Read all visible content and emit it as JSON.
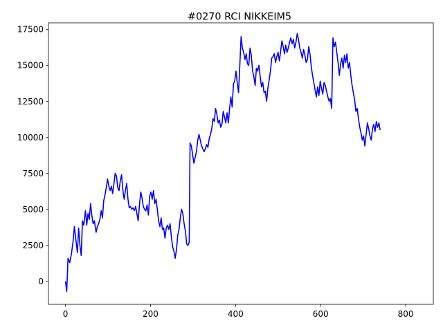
{
  "chart_data": {
    "type": "line",
    "title": "#0270 RCI NIKKEIM5",
    "xlabel": "",
    "ylabel": "",
    "xlim": [
      -40,
      865
    ],
    "ylim": [
      -1600,
      17950
    ],
    "x_ticks": [
      0,
      200,
      400,
      600,
      800
    ],
    "y_ticks": [
      0,
      2500,
      5000,
      7500,
      10000,
      12500,
      15000,
      17500
    ],
    "x_tick_labels": [
      "0",
      "200",
      "400",
      "600",
      "800"
    ],
    "y_tick_labels": [
      "0",
      "2500",
      "5000",
      "7500",
      "10000",
      "12500",
      "15000",
      "17500"
    ],
    "grid": false,
    "legend": "none",
    "series": [
      {
        "color": "#0000ff",
        "points": [
          [
            0,
            0
          ],
          [
            3,
            -700
          ],
          [
            6,
            1600
          ],
          [
            10,
            1300
          ],
          [
            14,
            1900
          ],
          [
            18,
            2800
          ],
          [
            21,
            3800
          ],
          [
            24,
            3000
          ],
          [
            28,
            2000
          ],
          [
            31,
            3700
          ],
          [
            34,
            2500
          ],
          [
            37,
            1800
          ],
          [
            40,
            4200
          ],
          [
            43,
            3900
          ],
          [
            47,
            4900
          ],
          [
            50,
            3900
          ],
          [
            53,
            4700
          ],
          [
            56,
            4300
          ],
          [
            59,
            5400
          ],
          [
            62,
            4600
          ],
          [
            65,
            4000
          ],
          [
            68,
            4200
          ],
          [
            72,
            3400
          ],
          [
            75,
            3800
          ],
          [
            78,
            4000
          ],
          [
            81,
            4300
          ],
          [
            84,
            4900
          ],
          [
            87,
            4400
          ],
          [
            90,
            5600
          ],
          [
            93,
            6000
          ],
          [
            96,
            6500
          ],
          [
            99,
            7100
          ],
          [
            102,
            6600
          ],
          [
            105,
            6300
          ],
          [
            108,
            6600
          ],
          [
            111,
            6100
          ],
          [
            114,
            6800
          ],
          [
            117,
            7500
          ],
          [
            120,
            7300
          ],
          [
            123,
            6500
          ],
          [
            126,
            6300
          ],
          [
            129,
            7000
          ],
          [
            132,
            7400
          ],
          [
            135,
            6300
          ],
          [
            138,
            5700
          ],
          [
            141,
            6300
          ],
          [
            144,
            6800
          ],
          [
            147,
            5700
          ],
          [
            150,
            5100
          ],
          [
            153,
            5200
          ],
          [
            156,
            5000
          ],
          [
            159,
            5100
          ],
          [
            162,
            4900
          ],
          [
            165,
            5200
          ],
          [
            168,
            4700
          ],
          [
            171,
            4200
          ],
          [
            174,
            5300
          ],
          [
            177,
            6200
          ],
          [
            180,
            5800
          ],
          [
            183,
            5200
          ],
          [
            186,
            5000
          ],
          [
            189,
            4900
          ],
          [
            192,
            5300
          ],
          [
            195,
            4600
          ],
          [
            198,
            5900
          ],
          [
            201,
            6200
          ],
          [
            204,
            5700
          ],
          [
            207,
            6300
          ],
          [
            210,
            5400
          ],
          [
            213,
            5700
          ],
          [
            216,
            5000
          ],
          [
            219,
            4200
          ],
          [
            222,
            3800
          ],
          [
            225,
            4400
          ],
          [
            228,
            3600
          ],
          [
            231,
            3700
          ],
          [
            234,
            3000
          ],
          [
            237,
            3700
          ],
          [
            240,
            3900
          ],
          [
            243,
            3600
          ],
          [
            246,
            4000
          ],
          [
            249,
            3100
          ],
          [
            252,
            2400
          ],
          [
            255,
            2100
          ],
          [
            258,
            1600
          ],
          [
            261,
            2200
          ],
          [
            264,
            3200
          ],
          [
            267,
            3600
          ],
          [
            270,
            4400
          ],
          [
            273,
            5000
          ],
          [
            276,
            4700
          ],
          [
            279,
            4000
          ],
          [
            282,
            3500
          ],
          [
            285,
            2600
          ],
          [
            288,
            2500
          ],
          [
            291,
            2700
          ],
          [
            293,
            9600
          ],
          [
            296,
            9400
          ],
          [
            299,
            8800
          ],
          [
            302,
            8200
          ],
          [
            305,
            8600
          ],
          [
            308,
            9000
          ],
          [
            311,
            9800
          ],
          [
            314,
            10200
          ],
          [
            317,
            9800
          ],
          [
            320,
            9400
          ],
          [
            323,
            9200
          ],
          [
            326,
            9000
          ],
          [
            329,
            9200
          ],
          [
            332,
            9500
          ],
          [
            335,
            9300
          ],
          [
            338,
            9900
          ],
          [
            341,
            10200
          ],
          [
            344,
            10600
          ],
          [
            347,
            11300
          ],
          [
            350,
            11100
          ],
          [
            353,
            12000
          ],
          [
            356,
            11600
          ],
          [
            359,
            11000
          ],
          [
            362,
            11200
          ],
          [
            365,
            10700
          ],
          [
            368,
            10900
          ],
          [
            371,
            11800
          ],
          [
            374,
            11400
          ],
          [
            377,
            11000
          ],
          [
            380,
            11700
          ],
          [
            383,
            11000
          ],
          [
            386,
            12000
          ],
          [
            389,
            12800
          ],
          [
            392,
            12100
          ],
          [
            395,
            13700
          ],
          [
            398,
            13900
          ],
          [
            401,
            14600
          ],
          [
            404,
            13800
          ],
          [
            407,
            13100
          ],
          [
            410,
            15000
          ],
          [
            413,
            17000
          ],
          [
            416,
            16200
          ],
          [
            419,
            15900
          ],
          [
            422,
            15400
          ],
          [
            425,
            15800
          ],
          [
            428,
            15100
          ],
          [
            431,
            15000
          ],
          [
            434,
            16200
          ],
          [
            437,
            15700
          ],
          [
            440,
            14600
          ],
          [
            443,
            14200
          ],
          [
            446,
            13600
          ],
          [
            449,
            14800
          ],
          [
            452,
            14600
          ],
          [
            455,
            15000
          ],
          [
            458,
            14200
          ],
          [
            461,
            13500
          ],
          [
            464,
            13800
          ],
          [
            467,
            13100
          ],
          [
            470,
            13200
          ],
          [
            473,
            12500
          ],
          [
            476,
            13400
          ],
          [
            479,
            14000
          ],
          [
            482,
            14600
          ],
          [
            485,
            15500
          ],
          [
            488,
            15600
          ],
          [
            491,
            15800
          ],
          [
            494,
            15200
          ],
          [
            497,
            15600
          ],
          [
            500,
            15900
          ],
          [
            503,
            15300
          ],
          [
            506,
            16000
          ],
          [
            509,
            16700
          ],
          [
            512,
            16300
          ],
          [
            515,
            15800
          ],
          [
            518,
            16400
          ],
          [
            521,
            15900
          ],
          [
            524,
            16200
          ],
          [
            527,
            16600
          ],
          [
            530,
            16900
          ],
          [
            533,
            16500
          ],
          [
            536,
            16800
          ],
          [
            539,
            16200
          ],
          [
            542,
            16600
          ],
          [
            545,
            17200
          ],
          [
            548,
            16800
          ],
          [
            551,
            16200
          ],
          [
            554,
            15900
          ],
          [
            557,
            15500
          ],
          [
            560,
            16100
          ],
          [
            563,
            15700
          ],
          [
            566,
            15200
          ],
          [
            569,
            15400
          ],
          [
            572,
            16300
          ],
          [
            575,
            15800
          ],
          [
            578,
            14900
          ],
          [
            581,
            14300
          ],
          [
            584,
            13800
          ],
          [
            587,
            13300
          ],
          [
            590,
            12800
          ],
          [
            593,
            13500
          ],
          [
            596,
            12900
          ],
          [
            599,
            13900
          ],
          [
            602,
            13400
          ],
          [
            605,
            13000
          ],
          [
            608,
            13800
          ],
          [
            611,
            13600
          ],
          [
            614,
            13200
          ],
          [
            617,
            12800
          ],
          [
            620,
            12500
          ],
          [
            623,
            12700
          ],
          [
            626,
            12000
          ],
          [
            629,
            16900
          ],
          [
            632,
            16300
          ],
          [
            635,
            16600
          ],
          [
            638,
            15900
          ],
          [
            641,
            15200
          ],
          [
            644,
            14300
          ],
          [
            647,
            15100
          ],
          [
            650,
            15500
          ],
          [
            653,
            14800
          ],
          [
            656,
            15700
          ],
          [
            659,
            15200
          ],
          [
            662,
            15800
          ],
          [
            665,
            14800
          ],
          [
            668,
            15200
          ],
          [
            671,
            14300
          ],
          [
            674,
            13600
          ],
          [
            677,
            13100
          ],
          [
            680,
            12600
          ],
          [
            683,
            11800
          ],
          [
            686,
            12000
          ],
          [
            689,
            11300
          ],
          [
            692,
            10700
          ],
          [
            695,
            10300
          ],
          [
            698,
            9800
          ],
          [
            701,
            10100
          ],
          [
            704,
            9400
          ],
          [
            707,
            10200
          ],
          [
            710,
            11000
          ],
          [
            713,
            10600
          ],
          [
            716,
            10100
          ],
          [
            719,
            9800
          ],
          [
            722,
            10600
          ],
          [
            725,
            10900
          ],
          [
            728,
            10400
          ],
          [
            731,
            11100
          ],
          [
            734,
            10700
          ],
          [
            737,
            11000
          ],
          [
            740,
            10500
          ]
        ]
      }
    ]
  }
}
